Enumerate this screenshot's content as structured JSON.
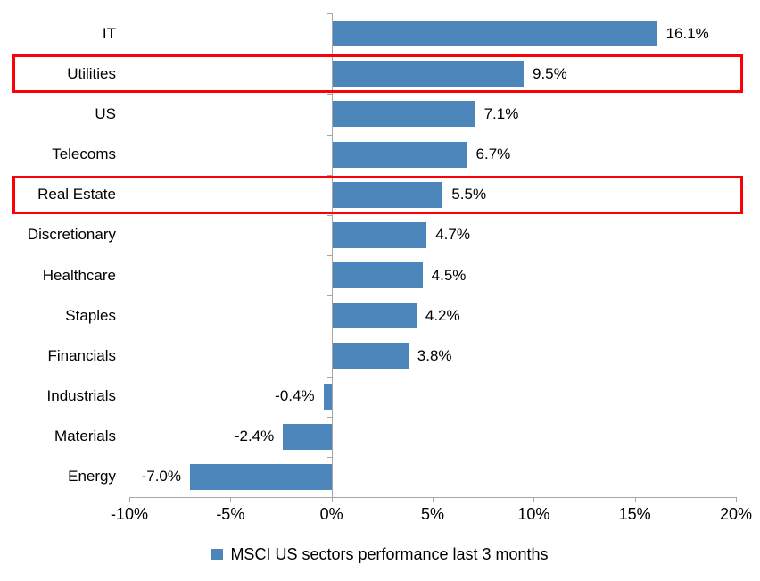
{
  "chart_data": {
    "type": "bar",
    "orientation": "horizontal",
    "title": "",
    "categories": [
      "IT",
      "Utilities",
      "US",
      "Telecoms",
      "Real Estate",
      "Discretionary",
      "Healthcare",
      "Staples",
      "Financials",
      "Industrials",
      "Materials",
      "Energy"
    ],
    "values": [
      16.1,
      9.5,
      7.1,
      6.7,
      5.5,
      4.7,
      4.5,
      4.2,
      3.8,
      -0.4,
      -2.4,
      -7.0
    ],
    "value_labels": [
      "16.1%",
      "9.5%",
      "7.1%",
      "6.7%",
      "5.5%",
      "4.7%",
      "4.5%",
      "4.2%",
      "3.8%",
      "-0.4%",
      "-2.4%",
      "-7.0%"
    ],
    "xlim": [
      -10,
      20
    ],
    "x_tick_values": [
      -10,
      -5,
      0,
      5,
      10,
      15,
      20
    ],
    "x_tick_labels": [
      "-10%",
      "-5%",
      "0%",
      "5%",
      "10%",
      "15%",
      "20%"
    ],
    "grid": "off",
    "legend": "MSCI US sectors performance last 3 months",
    "legend_position": "bottom-center",
    "bar_color": "#4d86bb",
    "axis_color": "#a6a6a6",
    "highlight_color": "#fb0007",
    "highlighted_categories": [
      "Utilities",
      "Real Estate"
    ]
  }
}
